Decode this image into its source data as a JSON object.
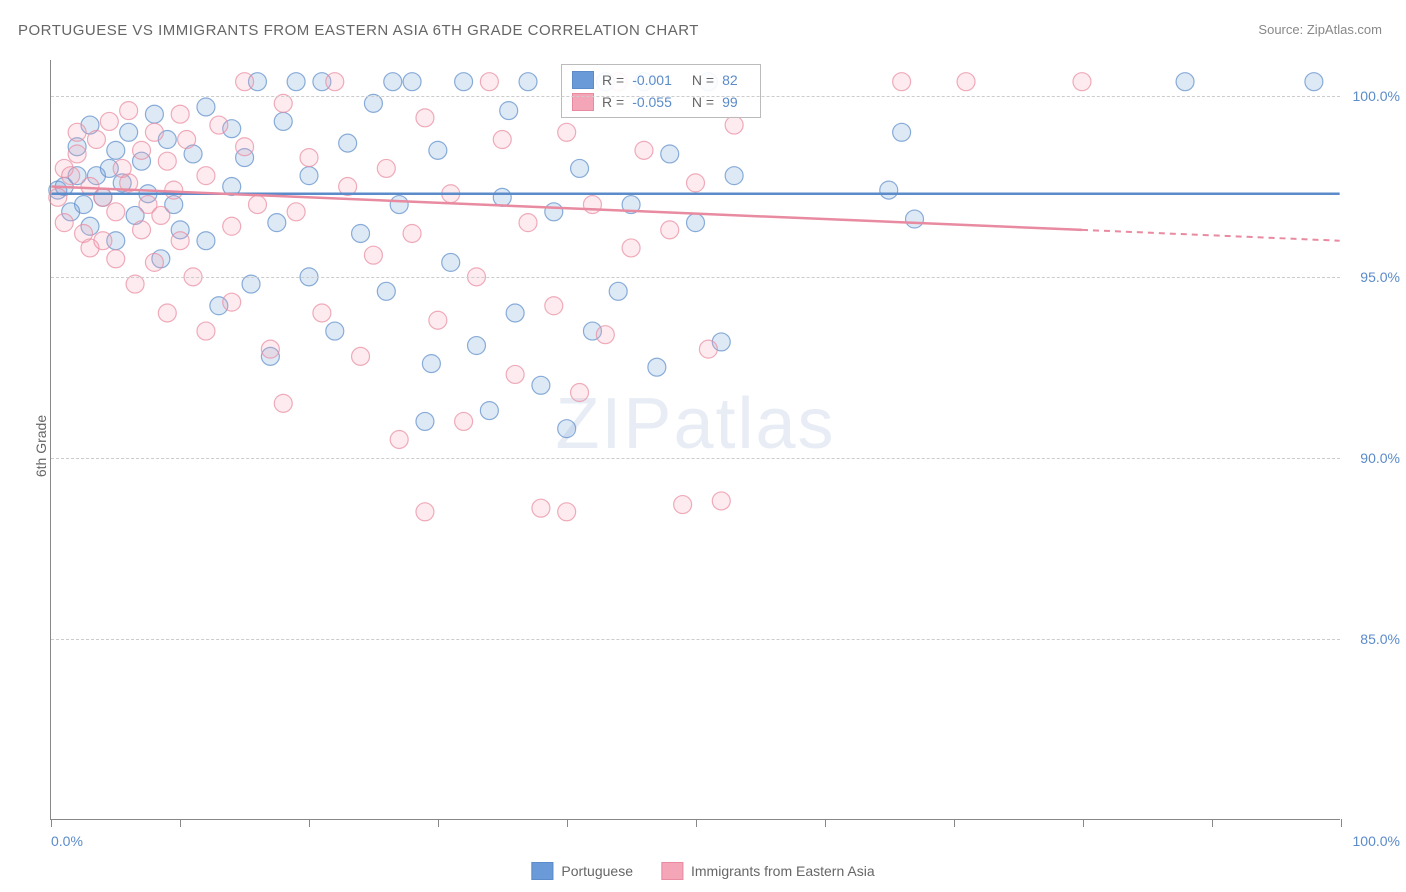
{
  "title": "PORTUGUESE VS IMMIGRANTS FROM EASTERN ASIA 6TH GRADE CORRELATION CHART",
  "source_label": "Source:",
  "source_value": "ZipAtlas.com",
  "y_axis_label": "6th Grade",
  "watermark_zip": "ZIP",
  "watermark_atlas": "atlas",
  "chart": {
    "type": "scatter",
    "xlim": [
      0,
      100
    ],
    "ylim": [
      80,
      101
    ],
    "x_tick_positions": [
      0,
      10,
      20,
      30,
      40,
      50,
      60,
      70,
      80,
      90,
      100
    ],
    "x_tick_labels_shown": {
      "0": "0.0%",
      "100": "100.0%"
    },
    "y_ticks": [
      {
        "v": 85,
        "label": "85.0%"
      },
      {
        "v": 90,
        "label": "90.0%"
      },
      {
        "v": 95,
        "label": "95.0%"
      },
      {
        "v": 100,
        "label": "100.0%"
      }
    ],
    "background_color": "#ffffff",
    "grid_color": "#cccccc",
    "axis_color": "#888888",
    "marker_radius": 9,
    "marker_fill_opacity": 0.22,
    "marker_stroke_opacity": 0.7,
    "marker_stroke_width": 1.2,
    "series": [
      {
        "name": "Portuguese",
        "color": "#6a9bd8",
        "stroke": "#5b8bc9",
        "regression": {
          "y_start": 97.3,
          "y_end": 97.3,
          "x_start": 0,
          "x_end": 100,
          "dashed_from_x": null
        },
        "stats": {
          "R": "-0.001",
          "N": "82"
        },
        "points": [
          [
            0.5,
            97.4
          ],
          [
            1,
            97.5
          ],
          [
            1.5,
            96.8
          ],
          [
            2,
            97.8
          ],
          [
            2,
            98.6
          ],
          [
            2.5,
            97.0
          ],
          [
            3,
            99.2
          ],
          [
            3,
            96.4
          ],
          [
            3.5,
            97.8
          ],
          [
            4,
            97.2
          ],
          [
            4.5,
            98.0
          ],
          [
            5,
            96.0
          ],
          [
            5,
            98.5
          ],
          [
            5.5,
            97.6
          ],
          [
            6,
            99.0
          ],
          [
            6.5,
            96.7
          ],
          [
            7,
            98.2
          ],
          [
            7.5,
            97.3
          ],
          [
            8,
            99.5
          ],
          [
            8.5,
            95.5
          ],
          [
            9,
            98.8
          ],
          [
            9.5,
            97.0
          ],
          [
            10,
            96.3
          ],
          [
            11,
            98.4
          ],
          [
            12,
            99.7
          ],
          [
            12,
            96.0
          ],
          [
            13,
            94.2
          ],
          [
            14,
            97.5
          ],
          [
            14,
            99.1
          ],
          [
            15,
            98.3
          ],
          [
            15.5,
            94.8
          ],
          [
            16,
            100.4
          ],
          [
            17,
            92.8
          ],
          [
            17.5,
            96.5
          ],
          [
            18,
            99.3
          ],
          [
            19,
            100.4
          ],
          [
            20,
            95.0
          ],
          [
            20,
            97.8
          ],
          [
            21,
            100.4
          ],
          [
            22,
            93.5
          ],
          [
            23,
            98.7
          ],
          [
            24,
            96.2
          ],
          [
            25,
            99.8
          ],
          [
            26,
            94.6
          ],
          [
            26.5,
            100.4
          ],
          [
            27,
            97.0
          ],
          [
            28,
            100.4
          ],
          [
            29,
            91.0
          ],
          [
            29.5,
            92.6
          ],
          [
            30,
            98.5
          ],
          [
            31,
            95.4
          ],
          [
            32,
            100.4
          ],
          [
            33,
            93.1
          ],
          [
            34,
            91.3
          ],
          [
            35,
            97.2
          ],
          [
            35.5,
            99.6
          ],
          [
            36,
            94.0
          ],
          [
            37,
            100.4
          ],
          [
            38,
            92.0
          ],
          [
            39,
            96.8
          ],
          [
            40,
            90.8
          ],
          [
            41,
            98.0
          ],
          [
            42,
            93.5
          ],
          [
            43,
            100.4
          ],
          [
            44,
            94.6
          ],
          [
            45,
            97.0
          ],
          [
            46,
            100.4
          ],
          [
            47,
            92.5
          ],
          [
            48,
            98.4
          ],
          [
            50,
            96.5
          ],
          [
            51,
            100.4
          ],
          [
            52,
            93.2
          ],
          [
            53,
            97.8
          ],
          [
            65,
            97.4
          ],
          [
            66,
            99.0
          ],
          [
            67,
            96.6
          ],
          [
            88,
            100.4
          ],
          [
            98,
            100.4
          ]
        ]
      },
      {
        "name": "Immigrants from Eastern Asia",
        "color": "#f4a6b8",
        "stroke": "#e88aa0",
        "regression": {
          "y_start": 97.5,
          "y_end": 96.0,
          "x_start": 0,
          "x_end": 100,
          "dashed_from_x": 80
        },
        "stats": {
          "R": "-0.055",
          "N": "99"
        },
        "points": [
          [
            0.5,
            97.2
          ],
          [
            1,
            98.0
          ],
          [
            1,
            96.5
          ],
          [
            1.5,
            97.8
          ],
          [
            2,
            98.4
          ],
          [
            2,
            99.0
          ],
          [
            2.5,
            96.2
          ],
          [
            3,
            97.5
          ],
          [
            3,
            95.8
          ],
          [
            3.5,
            98.8
          ],
          [
            4,
            96.0
          ],
          [
            4,
            97.2
          ],
          [
            4.5,
            99.3
          ],
          [
            5,
            95.5
          ],
          [
            5,
            96.8
          ],
          [
            5.5,
            98.0
          ],
          [
            6,
            97.6
          ],
          [
            6,
            99.6
          ],
          [
            6.5,
            94.8
          ],
          [
            7,
            96.3
          ],
          [
            7,
            98.5
          ],
          [
            7.5,
            97.0
          ],
          [
            8,
            99.0
          ],
          [
            8,
            95.4
          ],
          [
            8.5,
            96.7
          ],
          [
            9,
            98.2
          ],
          [
            9,
            94.0
          ],
          [
            9.5,
            97.4
          ],
          [
            10,
            99.5
          ],
          [
            10,
            96.0
          ],
          [
            10.5,
            98.8
          ],
          [
            11,
            95.0
          ],
          [
            12,
            97.8
          ],
          [
            12,
            93.5
          ],
          [
            13,
            99.2
          ],
          [
            14,
            96.4
          ],
          [
            14,
            94.3
          ],
          [
            15,
            98.6
          ],
          [
            15,
            100.4
          ],
          [
            16,
            97.0
          ],
          [
            17,
            93.0
          ],
          [
            18,
            99.8
          ],
          [
            18,
            91.5
          ],
          [
            19,
            96.8
          ],
          [
            20,
            98.3
          ],
          [
            21,
            94.0
          ],
          [
            22,
            100.4
          ],
          [
            23,
            97.5
          ],
          [
            24,
            92.8
          ],
          [
            25,
            95.6
          ],
          [
            26,
            98.0
          ],
          [
            27,
            90.5
          ],
          [
            28,
            96.2
          ],
          [
            29,
            99.4
          ],
          [
            29,
            88.5
          ],
          [
            30,
            93.8
          ],
          [
            31,
            97.3
          ],
          [
            32,
            91.0
          ],
          [
            33,
            95.0
          ],
          [
            34,
            100.4
          ],
          [
            35,
            98.8
          ],
          [
            36,
            92.3
          ],
          [
            37,
            96.5
          ],
          [
            38,
            88.6
          ],
          [
            39,
            94.2
          ],
          [
            40,
            99.0
          ],
          [
            40,
            88.5
          ],
          [
            41,
            91.8
          ],
          [
            42,
            97.0
          ],
          [
            43,
            93.4
          ],
          [
            44,
            100.4
          ],
          [
            45,
            95.8
          ],
          [
            46,
            98.5
          ],
          [
            48,
            96.3
          ],
          [
            49,
            88.7
          ],
          [
            50,
            97.6
          ],
          [
            51,
            93.0
          ],
          [
            52,
            88.8
          ],
          [
            53,
            99.2
          ],
          [
            66,
            100.4
          ],
          [
            71,
            100.4
          ],
          [
            80,
            100.4
          ]
        ]
      }
    ]
  },
  "stats_box": {
    "R_label": "R =",
    "N_label": "N ="
  },
  "legend": {
    "series1": "Portuguese",
    "series2": "Immigrants from Eastern Asia"
  }
}
